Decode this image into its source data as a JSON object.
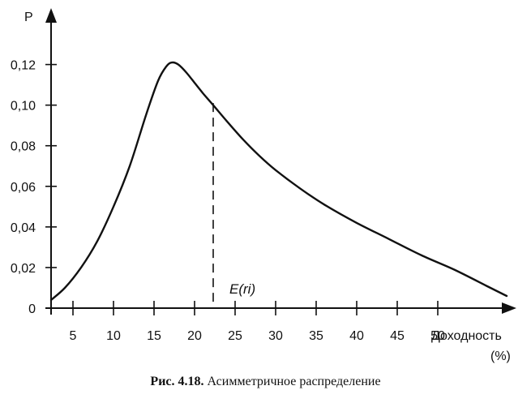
{
  "caption": {
    "number": "Рис. 4.18.",
    "text": "Асимметричное распределение"
  },
  "chart_data": {
    "type": "line",
    "ylabel": "P",
    "xlabel_line1": "Доходность",
    "xlabel_line2": "(%)",
    "x_ticks": [
      5,
      10,
      15,
      20,
      25,
      30,
      35,
      40,
      45,
      50
    ],
    "y_ticks": [
      0,
      0.02,
      0.04,
      0.06,
      0.08,
      0.1,
      0.12
    ],
    "y_tick_labels": [
      "0",
      "0,02",
      "0,04",
      "0,06",
      "0,08",
      "0,10",
      "0,12"
    ],
    "series": [
      {
        "x": [
          2.3,
          4,
          6,
          8,
          10,
          12,
          14,
          15.5,
          16.5,
          17.2,
          18,
          19,
          20,
          21,
          22.3,
          24,
          26,
          28,
          30,
          33,
          36,
          40,
          44,
          48,
          52,
          56,
          58.5
        ],
        "y": [
          0.004,
          0.01,
          0.02,
          0.033,
          0.05,
          0.07,
          0.095,
          0.112,
          0.119,
          0.121,
          0.12,
          0.116,
          0.111,
          0.106,
          0.1,
          0.092,
          0.083,
          0.075,
          0.068,
          0.059,
          0.051,
          0.042,
          0.034,
          0.026,
          0.019,
          0.011,
          0.006
        ]
      }
    ],
    "mean_marker": {
      "label": "E(ri)",
      "x": 22.3,
      "y": 0.101
    },
    "xlim": [
      0,
      60
    ],
    "ylim": [
      0,
      0.145
    ]
  }
}
